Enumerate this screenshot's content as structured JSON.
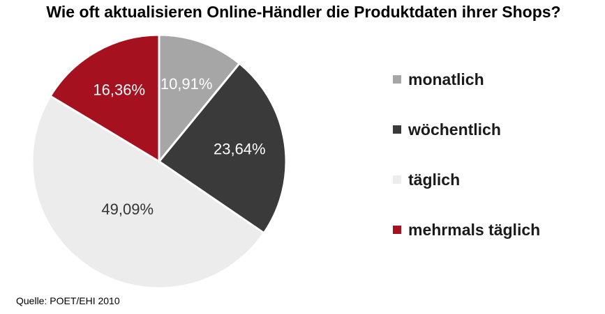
{
  "chart_data": {
    "type": "pie",
    "title": "Wie oft aktualisieren Online-Händler die Produktdaten ihrer Shops?",
    "categories": [
      "monatlich",
      "wöchentlich",
      "täglich",
      "mehrmals täglich"
    ],
    "values": [
      10.91,
      23.64,
      49.09,
      16.36
    ],
    "value_labels": [
      "10,91%",
      "23,64%",
      "49,09%",
      "16,36%"
    ],
    "colors": [
      "#a6a6a6",
      "#3a3a3a",
      "#ececec",
      "#a6111f"
    ],
    "label_colors": [
      "#ffffff",
      "#ffffff",
      "#333333",
      "#ffffff"
    ],
    "legend_position": "right",
    "start_angle": "top, clockwise"
  },
  "source": "Quelle: POET/EHI 2010"
}
